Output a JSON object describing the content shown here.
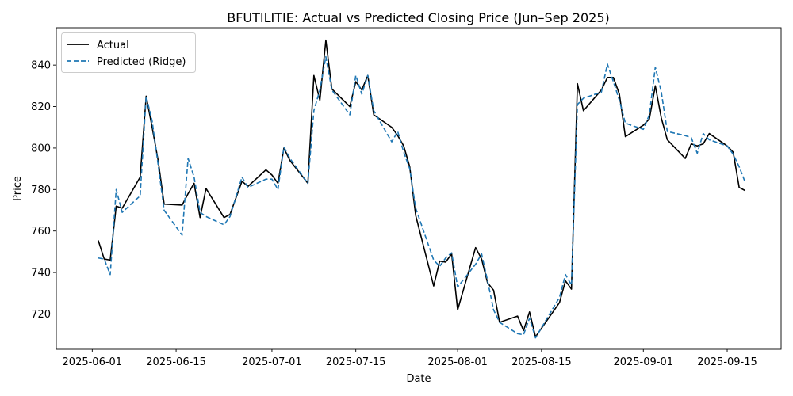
{
  "chart_data": {
    "type": "line",
    "title": "BFUTILITIE: Actual vs Predicted Closing Price (Jun–Sep 2025)",
    "xlabel": "Date",
    "ylabel": "Price",
    "xlim": [
      "2025-05-26",
      "2025-09-24"
    ],
    "ylim": [
      703,
      858
    ],
    "x_ticks": [
      "2025-06-01",
      "2025-06-15",
      "2025-07-01",
      "2025-07-15",
      "2025-08-01",
      "2025-08-15",
      "2025-09-01",
      "2025-09-15"
    ],
    "y_ticks": [
      720,
      740,
      760,
      780,
      800,
      820,
      840
    ],
    "grid": false,
    "legend_position": "top-left",
    "series": [
      {
        "name": "Actual",
        "color": "#000000",
        "style": "solid",
        "points": [
          [
            "2025-06-02",
            755.5
          ],
          [
            "2025-06-03",
            746.5
          ],
          [
            "2025-06-04",
            746
          ],
          [
            "2025-06-05",
            772
          ],
          [
            "2025-06-06",
            771
          ],
          [
            "2025-06-09",
            786
          ],
          [
            "2025-06-10",
            825
          ],
          [
            "2025-06-11",
            810
          ],
          [
            "2025-06-12",
            794
          ],
          [
            "2025-06-13",
            773
          ],
          [
            "2025-06-16",
            772.5
          ],
          [
            "2025-06-17",
            778
          ],
          [
            "2025-06-18",
            783
          ],
          [
            "2025-06-19",
            766.5
          ],
          [
            "2025-06-20",
            780.5
          ],
          [
            "2025-06-23",
            766.5
          ],
          [
            "2025-06-24",
            768
          ],
          [
            "2025-06-26",
            784
          ],
          [
            "2025-06-27",
            781.5
          ],
          [
            "2025-06-30",
            789.5
          ],
          [
            "2025-07-01",
            787
          ],
          [
            "2025-07-02",
            783
          ],
          [
            "2025-07-03",
            800
          ],
          [
            "2025-07-04",
            794
          ],
          [
            "2025-07-07",
            783
          ],
          [
            "2025-07-08",
            835
          ],
          [
            "2025-07-09",
            823
          ],
          [
            "2025-07-10",
            852
          ],
          [
            "2025-07-11",
            828.5
          ],
          [
            "2025-07-14",
            820
          ],
          [
            "2025-07-15",
            832
          ],
          [
            "2025-07-16",
            828
          ],
          [
            "2025-07-17",
            835
          ],
          [
            "2025-07-18",
            816
          ],
          [
            "2025-07-21",
            810
          ],
          [
            "2025-07-22",
            806
          ],
          [
            "2025-07-23",
            801
          ],
          [
            "2025-07-24",
            791
          ],
          [
            "2025-07-25",
            767.5
          ],
          [
            "2025-07-28",
            733.5
          ],
          [
            "2025-07-29",
            745.5
          ],
          [
            "2025-07-30",
            745
          ],
          [
            "2025-07-31",
            749
          ],
          [
            "2025-08-01",
            722
          ],
          [
            "2025-08-04",
            752
          ],
          [
            "2025-08-05",
            746.5
          ],
          [
            "2025-08-06",
            735
          ],
          [
            "2025-08-07",
            731.5
          ],
          [
            "2025-08-08",
            716
          ],
          [
            "2025-08-11",
            719
          ],
          [
            "2025-08-12",
            712
          ],
          [
            "2025-08-13",
            721
          ],
          [
            "2025-08-14",
            709
          ],
          [
            "2025-08-18",
            725.5
          ],
          [
            "2025-08-19",
            736
          ],
          [
            "2025-08-20",
            732
          ],
          [
            "2025-08-21",
            831
          ],
          [
            "2025-08-22",
            818
          ],
          [
            "2025-08-25",
            828
          ],
          [
            "2025-08-26",
            834
          ],
          [
            "2025-08-27",
            834
          ],
          [
            "2025-08-28",
            826
          ],
          [
            "2025-08-29",
            805.5
          ],
          [
            "2025-09-01",
            811
          ],
          [
            "2025-09-02",
            814
          ],
          [
            "2025-09-03",
            830
          ],
          [
            "2025-09-04",
            814.5
          ],
          [
            "2025-09-05",
            804
          ],
          [
            "2025-09-08",
            795
          ],
          [
            "2025-09-09",
            802
          ],
          [
            "2025-09-10",
            801
          ],
          [
            "2025-09-11",
            802
          ],
          [
            "2025-09-12",
            807
          ],
          [
            "2025-09-15",
            801
          ],
          [
            "2025-09-16",
            798
          ],
          [
            "2025-09-17",
            781
          ],
          [
            "2025-09-18",
            779.5
          ]
        ]
      },
      {
        "name": "Predicted (Ridge)",
        "color": "#1f77b4",
        "style": "dashed",
        "points": [
          [
            "2025-06-02",
            747
          ],
          [
            "2025-06-03",
            746.5
          ],
          [
            "2025-06-04",
            739
          ],
          [
            "2025-06-05",
            780
          ],
          [
            "2025-06-06",
            769
          ],
          [
            "2025-06-09",
            777
          ],
          [
            "2025-06-10",
            825
          ],
          [
            "2025-06-11",
            813
          ],
          [
            "2025-06-12",
            792
          ],
          [
            "2025-06-13",
            770
          ],
          [
            "2025-06-16",
            758
          ],
          [
            "2025-06-17",
            795
          ],
          [
            "2025-06-18",
            786
          ],
          [
            "2025-06-19",
            769
          ],
          [
            "2025-06-20",
            767
          ],
          [
            "2025-06-23",
            763
          ],
          [
            "2025-06-24",
            767
          ],
          [
            "2025-06-26",
            786
          ],
          [
            "2025-06-27",
            781
          ],
          [
            "2025-06-30",
            785
          ],
          [
            "2025-07-01",
            785
          ],
          [
            "2025-07-02",
            780
          ],
          [
            "2025-07-03",
            800.5
          ],
          [
            "2025-07-04",
            795
          ],
          [
            "2025-07-07",
            783
          ],
          [
            "2025-07-08",
            818
          ],
          [
            "2025-07-09",
            828
          ],
          [
            "2025-07-10",
            844
          ],
          [
            "2025-07-11",
            828
          ],
          [
            "2025-07-14",
            816
          ],
          [
            "2025-07-15",
            835
          ],
          [
            "2025-07-16",
            826
          ],
          [
            "2025-07-17",
            835
          ],
          [
            "2025-07-18",
            818
          ],
          [
            "2025-07-21",
            803
          ],
          [
            "2025-07-22",
            808
          ],
          [
            "2025-07-23",
            798
          ],
          [
            "2025-07-24",
            790
          ],
          [
            "2025-07-25",
            771
          ],
          [
            "2025-07-28",
            746
          ],
          [
            "2025-07-29",
            743
          ],
          [
            "2025-07-30",
            747
          ],
          [
            "2025-07-31",
            749.5
          ],
          [
            "2025-08-01",
            733
          ],
          [
            "2025-08-04",
            744
          ],
          [
            "2025-08-05",
            749
          ],
          [
            "2025-08-06",
            736
          ],
          [
            "2025-08-07",
            722
          ],
          [
            "2025-08-08",
            716
          ],
          [
            "2025-08-11",
            710.5
          ],
          [
            "2025-08-12",
            710
          ],
          [
            "2025-08-13",
            718
          ],
          [
            "2025-08-14",
            708.5
          ],
          [
            "2025-08-18",
            728
          ],
          [
            "2025-08-19",
            739
          ],
          [
            "2025-08-20",
            734
          ],
          [
            "2025-08-21",
            821
          ],
          [
            "2025-08-22",
            824
          ],
          [
            "2025-08-25",
            827
          ],
          [
            "2025-08-26",
            840.5
          ],
          [
            "2025-08-27",
            832
          ],
          [
            "2025-08-28",
            823
          ],
          [
            "2025-08-29",
            812
          ],
          [
            "2025-09-01",
            809
          ],
          [
            "2025-09-02",
            816
          ],
          [
            "2025-09-03",
            839
          ],
          [
            "2025-09-04",
            827
          ],
          [
            "2025-09-05",
            808
          ],
          [
            "2025-09-08",
            806
          ],
          [
            "2025-09-09",
            805
          ],
          [
            "2025-09-10",
            797.5
          ],
          [
            "2025-09-11",
            807
          ],
          [
            "2025-09-12",
            804
          ],
          [
            "2025-09-15",
            801
          ],
          [
            "2025-09-16",
            797
          ],
          [
            "2025-09-17",
            791
          ],
          [
            "2025-09-18",
            783.5
          ]
        ]
      }
    ]
  }
}
